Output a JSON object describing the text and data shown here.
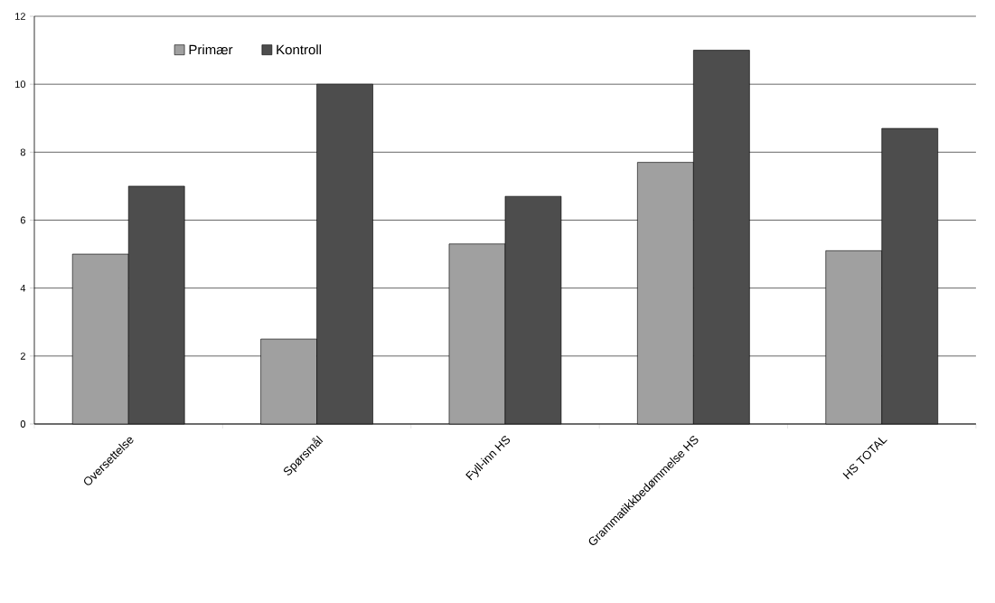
{
  "chart_data": {
    "type": "bar",
    "categories": [
      "Oversettelse",
      "Spørsmål",
      "Fyll-inn HS",
      "Grammatikkbedømmelse HS",
      "HS TOTAL"
    ],
    "series": [
      {
        "name": "Primær",
        "color": "#a0a0a0",
        "values": [
          5.0,
          2.5,
          5.3,
          7.7,
          5.1
        ]
      },
      {
        "name": "Kontroll",
        "color": "#4d4d4d",
        "values": [
          7.0,
          10.0,
          6.7,
          11.0,
          8.7
        ]
      }
    ],
    "ylim": [
      0,
      12
    ],
    "yticks": [
      0,
      2,
      4,
      6,
      8,
      10,
      12
    ],
    "grid": "y",
    "legend": "top left"
  }
}
